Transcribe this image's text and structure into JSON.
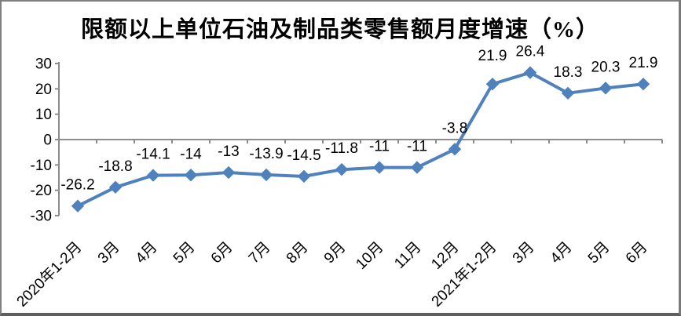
{
  "chart_data": {
    "type": "line",
    "title": "限额以上单位石油及制品类零售额月度增速（%）",
    "categories": [
      "2020年1-2月",
      "3月",
      "4月",
      "5月",
      "6月",
      "7月",
      "8月",
      "9月",
      "10月",
      "11月",
      "12月",
      "2021年1-2月",
      "3月",
      "4月",
      "5月",
      "6月"
    ],
    "values": [
      -26.2,
      -18.8,
      -14.1,
      -14,
      -13,
      -13.9,
      -14.5,
      -11.8,
      -11,
      -11,
      -3.8,
      21.9,
      26.4,
      18.3,
      20.3,
      21.9
    ],
    "data_labels": [
      "-26.2",
      "-18.8",
      "-14.1",
      "-14",
      "-13",
      "-13.9",
      "-14.5",
      "-11.8",
      "-11",
      "-11",
      "-3.8",
      "21.9",
      "26.4",
      "18.3",
      "20.3",
      "21.9"
    ],
    "y_ticks": [
      30,
      20,
      10,
      0,
      -10,
      -20,
      -30
    ],
    "ylim": [
      -30,
      30
    ],
    "xlabel": "",
    "ylabel": "",
    "grid": "off",
    "legend": "none",
    "line_color": "#4F81BD",
    "axis_color": "#8C8C8C",
    "label_color": "#000000",
    "marker": "diamond"
  }
}
